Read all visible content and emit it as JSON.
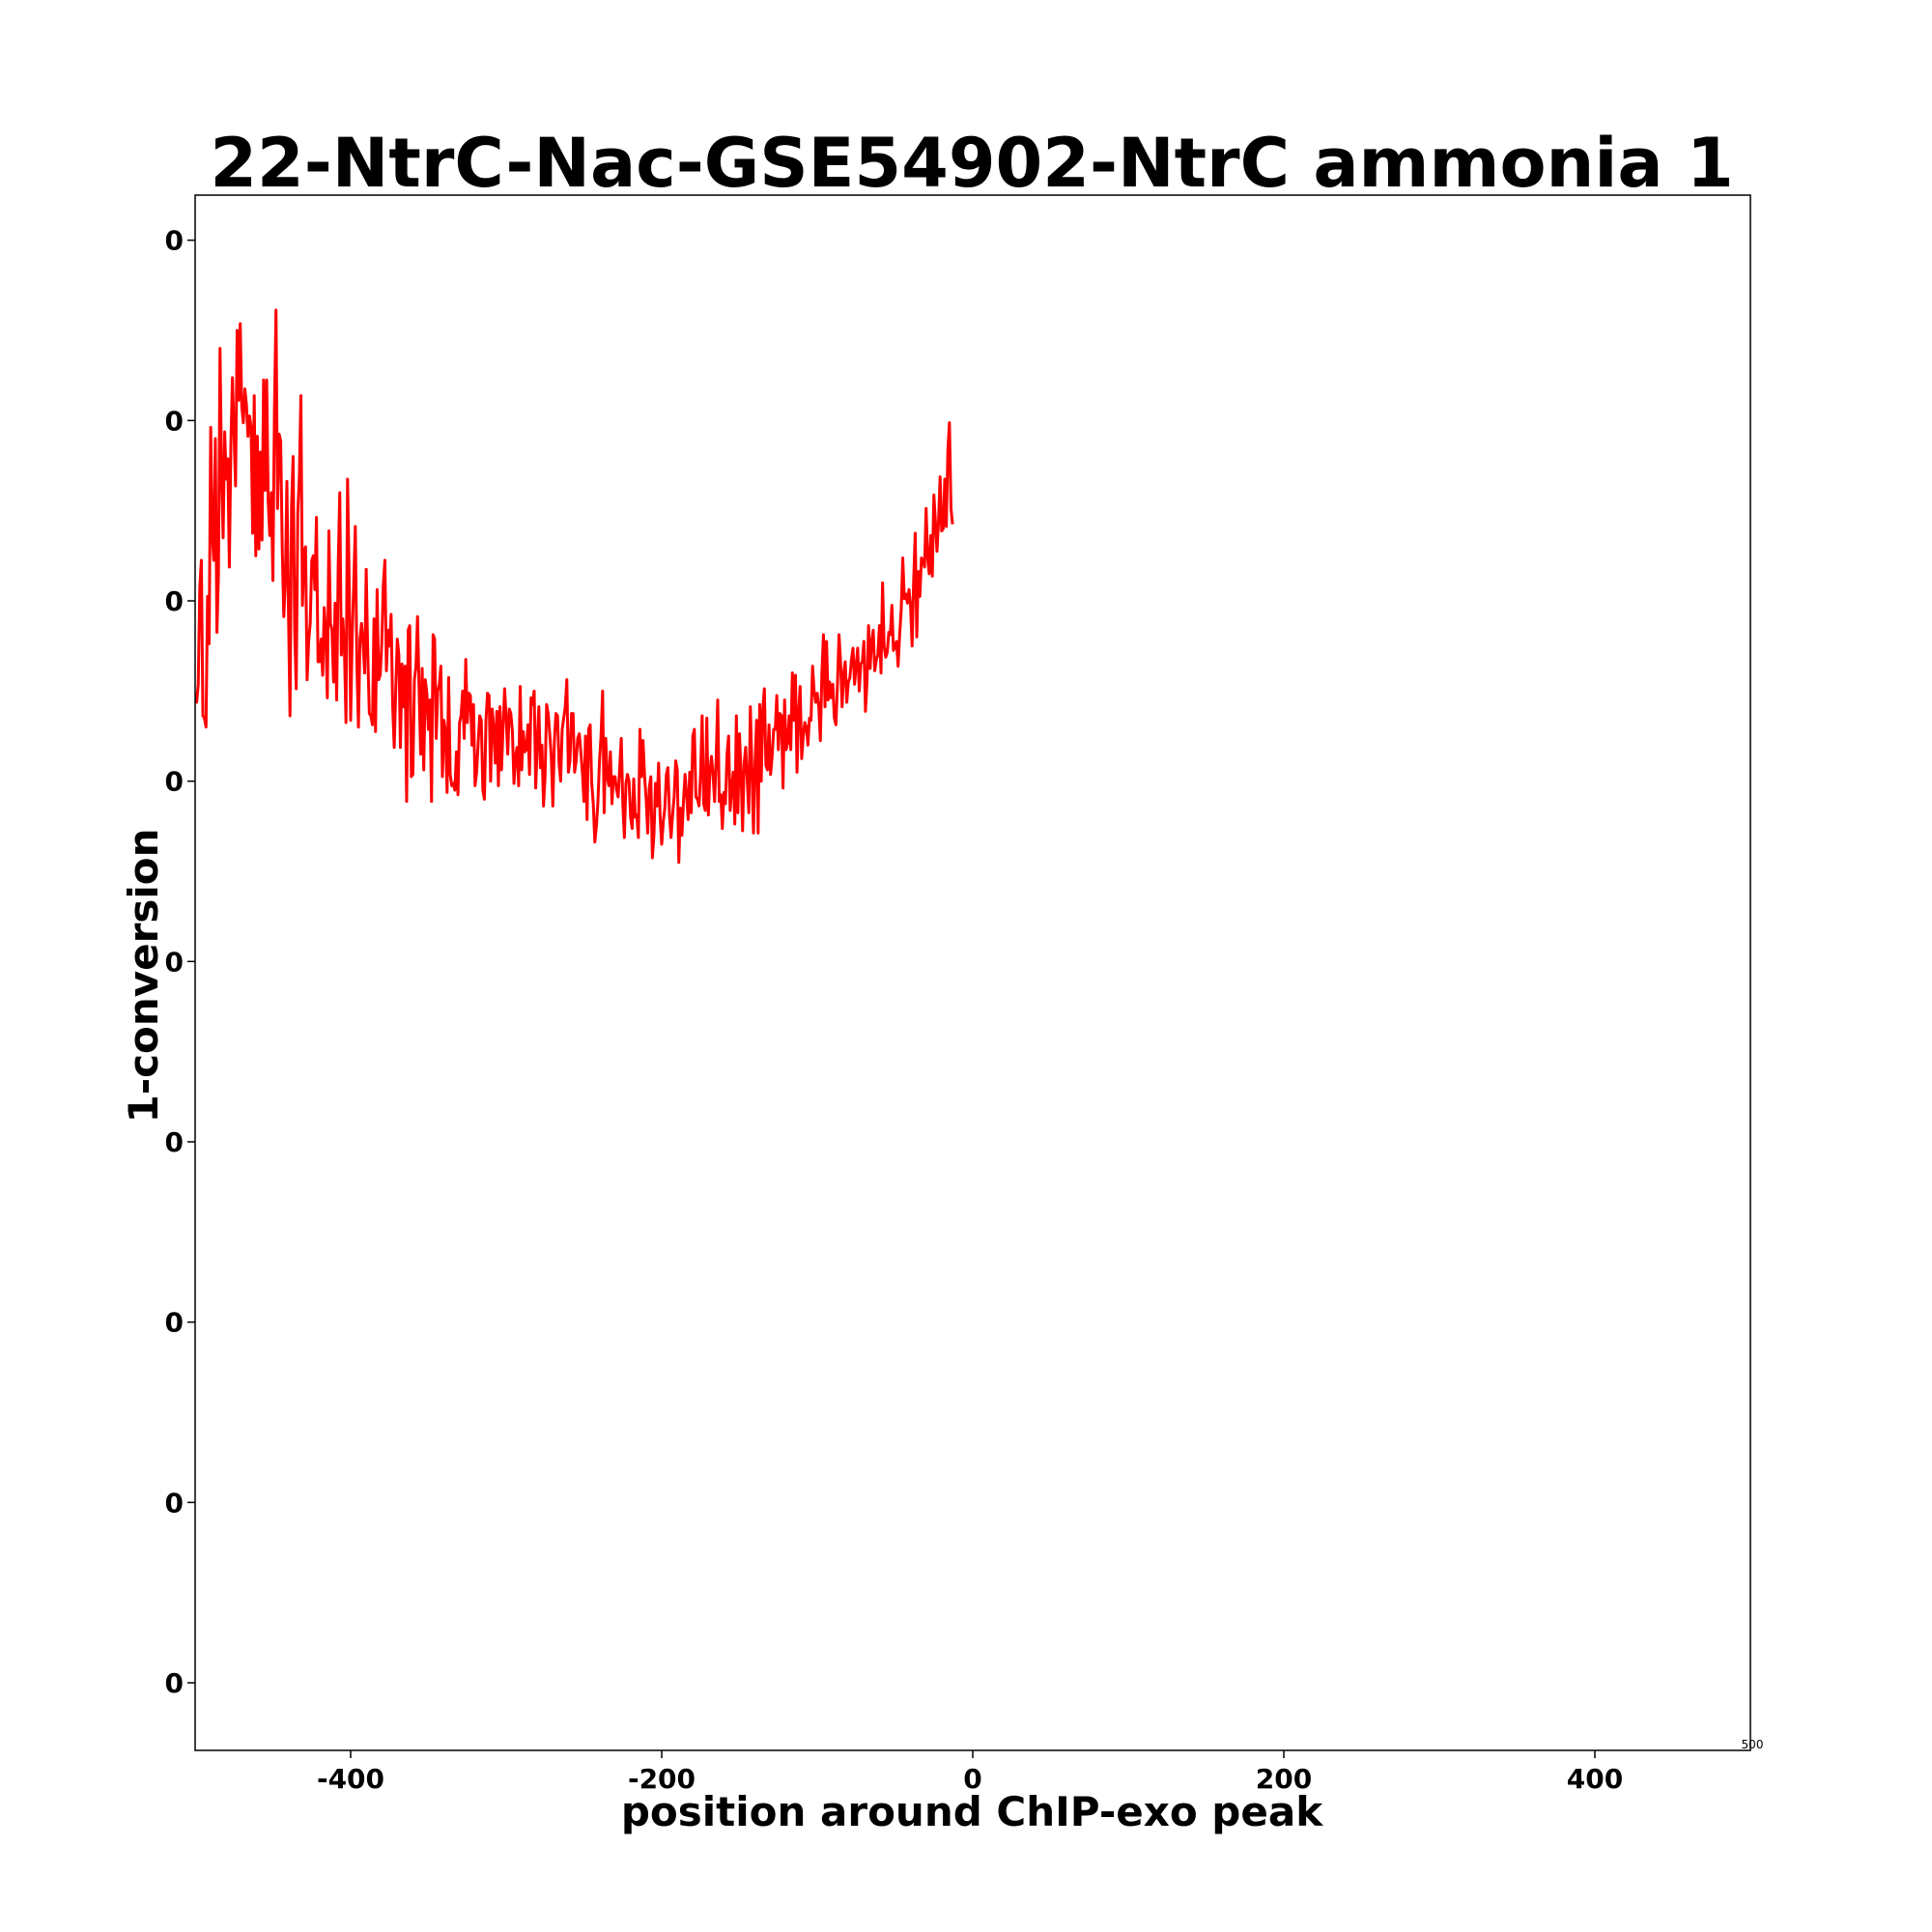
{
  "chart_data": {
    "type": "line",
    "title": "22-NtrC-Nac-GSE54902-NtrC ammonia 1",
    "xlabel": "position around ChIP-exo peak",
    "ylabel": "1-conversion",
    "xlim": [
      -500,
      500
    ],
    "ylim": [
      -0.0017,
      0.0052
    ],
    "x_ticks": [
      {
        "value": -400,
        "label": "-400"
      },
      {
        "value": -200,
        "label": "-200"
      },
      {
        "value": 0,
        "label": "0"
      },
      {
        "value": 200,
        "label": "200"
      },
      {
        "value": 400,
        "label": "400"
      }
    ],
    "x_edge_tick": {
      "value": 500,
      "label": "500"
    },
    "y_ticks": [
      {
        "value": 0.005,
        "label": "0"
      },
      {
        "value": 0.0042,
        "label": "0"
      },
      {
        "value": 0.0034,
        "label": "0"
      },
      {
        "value": 0.0026,
        "label": "0"
      },
      {
        "value": 0.0018,
        "label": "0"
      },
      {
        "value": 0.001,
        "label": "0"
      },
      {
        "value": 0.0002,
        "label": "0"
      },
      {
        "value": -0.0006,
        "label": "0"
      },
      {
        "value": -0.0014,
        "label": "0"
      }
    ],
    "grid": false,
    "legend": "none",
    "series": [
      {
        "color": "#ff0000",
        "x_start": -500,
        "x_step": 1,
        "values": [
          0.00299,
          0.00295,
          0.00303,
          0.00346,
          0.00358,
          0.00289,
          0.00288,
          0.00284,
          0.00342,
          0.00321,
          0.00417,
          0.00369,
          0.00358,
          0.00412,
          0.00326,
          0.00352,
          0.00452,
          0.00397,
          0.00368,
          0.00415,
          0.00394,
          0.00403,
          0.00355,
          0.0041,
          0.00439,
          0.00414,
          0.00391,
          0.0046,
          0.00429,
          0.00463,
          0.00426,
          0.00419,
          0.00434,
          0.00427,
          0.00413,
          0.00422,
          0.00417,
          0.0037,
          0.00431,
          0.0036,
          0.00413,
          0.00363,
          0.00406,
          0.00367,
          0.00438,
          0.00389,
          0.00438,
          0.00384,
          0.00369,
          0.00388,
          0.00349,
          0.00425,
          0.00469,
          0.00381,
          0.00414,
          0.00411,
          0.00364,
          0.00333,
          0.00348,
          0.00393,
          0.00336,
          0.00289,
          0.00382,
          0.00404,
          0.00327,
          0.00301,
          0.00379,
          0.00395,
          0.00431,
          0.00338,
          0.00362,
          0.00364,
          0.00305,
          0.00322,
          0.0033,
          0.00358,
          0.0036,
          0.00345,
          0.00377,
          0.00313,
          0.00313,
          0.00323,
          0.00307,
          0.00337,
          0.00326,
          0.00297,
          0.00371,
          0.0033,
          0.00327,
          0.00304,
          0.00339,
          0.00296,
          0.00356,
          0.00388,
          0.00316,
          0.00332,
          0.00318,
          0.00286,
          0.00394,
          0.00351,
          0.00287,
          0.00325,
          0.00348,
          0.00373,
          0.00312,
          0.00284,
          0.00323,
          0.0033,
          0.00321,
          0.00308,
          0.00354,
          0.00317,
          0.0029,
          0.00289,
          0.00285,
          0.00332,
          0.00282,
          0.00345,
          0.00305,
          0.00307,
          0.00321,
          0.00347,
          0.00358,
          0.00309,
          0.00327,
          0.0032,
          0.00334,
          0.00294,
          0.00275,
          0.00301,
          0.00323,
          0.00316,
          0.00275,
          0.00312,
          0.00293,
          0.00311,
          0.00251,
          0.00327,
          0.00329,
          0.00262,
          0.00263,
          0.00305,
          0.00311,
          0.00333,
          0.00301,
          0.00272,
          0.0031,
          0.00265,
          0.00305,
          0.00299,
          0.00283,
          0.00296,
          0.00251,
          0.00325,
          0.00323,
          0.00279,
          0.003,
          0.00303,
          0.00311,
          0.00262,
          0.00287,
          0.00282,
          0.00255,
          0.00306,
          0.00263,
          0.00258,
          0.00259,
          0.00256,
          0.00273,
          0.00254,
          0.00286,
          0.00289,
          0.003,
          0.00279,
          0.00314,
          0.00286,
          0.00299,
          0.00298,
          0.00276,
          0.00294,
          0.00258,
          0.00264,
          0.00277,
          0.00289,
          0.00287,
          0.00256,
          0.00252,
          0.00287,
          0.00299,
          0.00298,
          0.0026,
          0.00292,
          0.00284,
          0.00268,
          0.00291,
          0.00258,
          0.00293,
          0.00265,
          0.00284,
          0.00301,
          0.00288,
          0.00272,
          0.00292,
          0.0029,
          0.00282,
          0.00259,
          0.00271,
          0.00275,
          0.00258,
          0.00302,
          0.00265,
          0.00282,
          0.00273,
          0.00274,
          0.00285,
          0.00263,
          0.00297,
          0.00294,
          0.003,
          0.00257,
          0.00277,
          0.00293,
          0.00266,
          0.00276,
          0.00249,
          0.00262,
          0.00294,
          0.0029,
          0.00281,
          0.00271,
          0.00249,
          0.00278,
          0.0029,
          0.00289,
          0.00268,
          0.0026,
          0.00283,
          0.00288,
          0.00293,
          0.00305,
          0.00264,
          0.00269,
          0.0029,
          0.0029,
          0.00264,
          0.00269,
          0.00279,
          0.00281,
          0.00273,
          0.00264,
          0.00251,
          0.0028,
          0.00243,
          0.00283,
          0.00285,
          0.00259,
          0.0025,
          0.00233,
          0.0024,
          0.00251,
          0.00269,
          0.0028,
          0.003,
          0.00246,
          0.00279,
          0.00262,
          0.00258,
          0.00273,
          0.0025,
          0.00262,
          0.00262,
          0.00256,
          0.00253,
          0.00266,
          0.00279,
          0.0025,
          0.00235,
          0.00259,
          0.00263,
          0.0026,
          0.00244,
          0.00239,
          0.00261,
          0.00244,
          0.00245,
          0.00235,
          0.00283,
          0.00262,
          0.00278,
          0.00262,
          0.00252,
          0.00237,
          0.00257,
          0.00262,
          0.00226,
          0.00236,
          0.00259,
          0.00249,
          0.00268,
          0.00244,
          0.00232,
          0.00242,
          0.00248,
          0.00263,
          0.00266,
          0.00245,
          0.00235,
          0.00245,
          0.00253,
          0.00269,
          0.00265,
          0.00224,
          0.00248,
          0.00236,
          0.00251,
          0.00263,
          0.00254,
          0.00243,
          0.00264,
          0.00246,
          0.0028,
          0.00283,
          0.00253,
          0.00252,
          0.00249,
          0.00263,
          0.00289,
          0.0025,
          0.00247,
          0.00288,
          0.00245,
          0.00264,
          0.00271,
          0.00263,
          0.00251,
          0.0027,
          0.00296,
          0.00251,
          0.00254,
          0.00239,
          0.00255,
          0.0025,
          0.00272,
          0.0028,
          0.00247,
          0.00257,
          0.00264,
          0.00241,
          0.00289,
          0.00246,
          0.00281,
          0.00264,
          0.00238,
          0.00268,
          0.00275,
          0.0026,
          0.00246,
          0.00293,
          0.00266,
          0.00237,
          0.00268,
          0.00287,
          0.00237,
          0.00294,
          0.0026,
          0.00292,
          0.00301,
          0.00267,
          0.00265,
          0.00285,
          0.00263,
          0.00271,
          0.00283,
          0.00283,
          0.00298,
          0.00274,
          0.0029,
          0.00289,
          0.00257,
          0.00296,
          0.00274,
          0.00277,
          0.00289,
          0.00274,
          0.00308,
          0.00287,
          0.00307,
          0.00264,
          0.0029,
          0.00302,
          0.0027,
          0.0028,
          0.00286,
          0.00284,
          0.00276,
          0.00288,
          0.00287,
          0.00311,
          0.003,
          0.00295,
          0.00299,
          0.00293,
          0.00278,
          0.00308,
          0.00325,
          0.00293,
          0.00322,
          0.00296,
          0.00304,
          0.00297,
          0.00303,
          0.00288,
          0.00285,
          0.00303,
          0.00325,
          0.00313,
          0.00293,
          0.00308,
          0.00313,
          0.00295,
          0.00304,
          0.00306,
          0.00314,
          0.00319,
          0.00303,
          0.00311,
          0.00319,
          0.003,
          0.00312,
          0.00313,
          0.00322,
          0.00291,
          0.00304,
          0.00329,
          0.0031,
          0.00322,
          0.00327,
          0.00309,
          0.00314,
          0.00316,
          0.00329,
          0.00308,
          0.00348,
          0.0032,
          0.00315,
          0.00317,
          0.00326,
          0.00325,
          0.00338,
          0.00318,
          0.0032,
          0.00322,
          0.00311,
          0.00325,
          0.00336,
          0.00359,
          0.00341,
          0.00343,
          0.00339,
          0.00345,
          0.00338,
          0.0032,
          0.00349,
          0.0037,
          0.00324,
          0.00353,
          0.00342,
          0.00359,
          0.00358,
          0.00355,
          0.00381,
          0.00359,
          0.00352,
          0.00369,
          0.00351,
          0.00387,
          0.00375,
          0.00362,
          0.00375,
          0.00395,
          0.00371,
          0.00372,
          0.00394,
          0.00373,
          0.00407,
          0.00419,
          0.00381,
          0.00374
        ]
      }
    ]
  }
}
